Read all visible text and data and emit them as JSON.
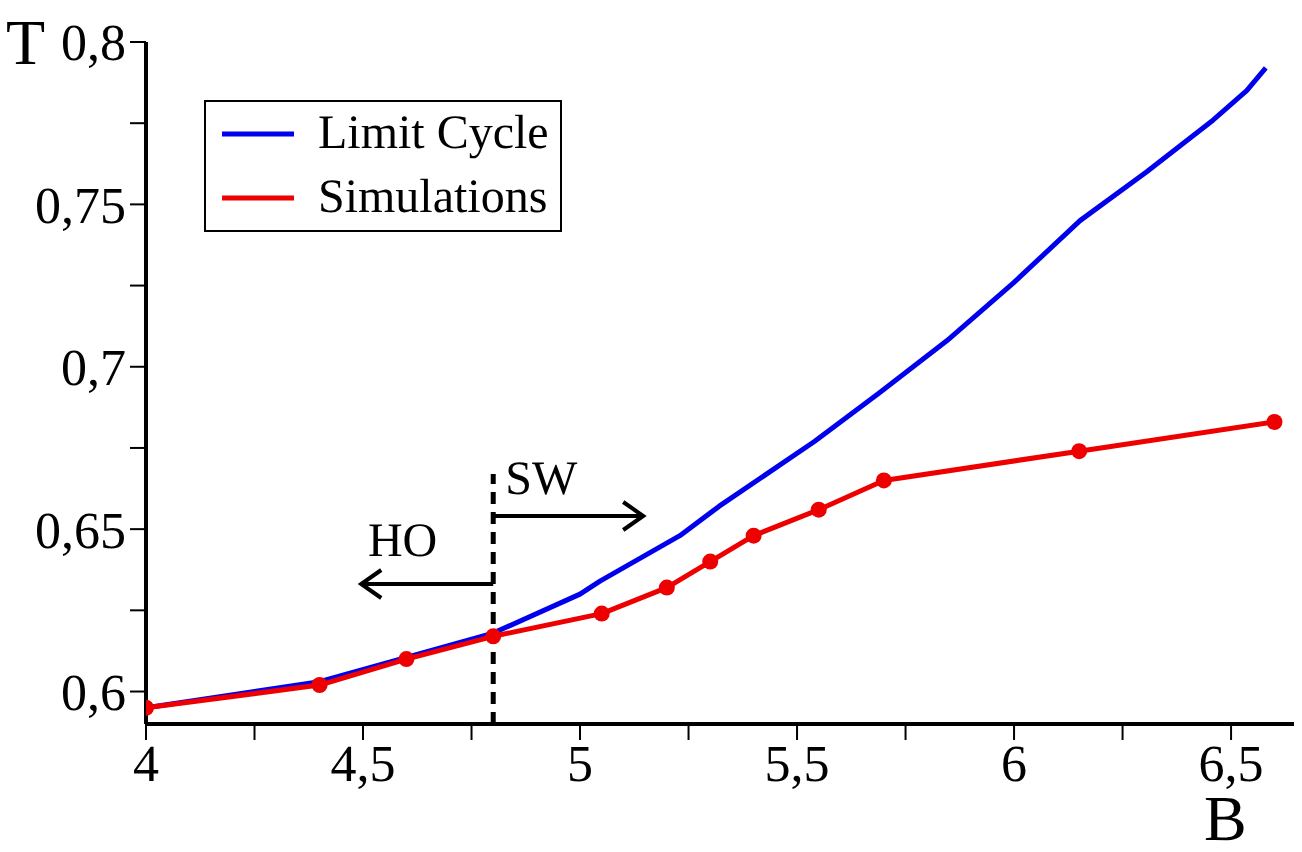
{
  "chart_data": {
    "type": "line",
    "xlabel": "B",
    "ylabel": "T",
    "xlim": [
      4,
      6.645
    ],
    "ylim": [
      0.59,
      0.8
    ],
    "xticks": [
      {
        "value": 4,
        "label": "4"
      },
      {
        "value": 4.25,
        "label": null
      },
      {
        "value": 4.5,
        "label": "4,5"
      },
      {
        "value": 4.75,
        "label": null
      },
      {
        "value": 5,
        "label": "5"
      },
      {
        "value": 5.25,
        "label": null
      },
      {
        "value": 5.5,
        "label": "5,5"
      },
      {
        "value": 5.75,
        "label": null
      },
      {
        "value": 6,
        "label": "6"
      },
      {
        "value": 6.25,
        "label": null
      },
      {
        "value": 6.5,
        "label": "6,5"
      }
    ],
    "yticks": [
      {
        "value": 0.6,
        "label": "0,6"
      },
      {
        "value": 0.625,
        "label": null
      },
      {
        "value": 0.65,
        "label": "0,65"
      },
      {
        "value": 0.675,
        "label": null
      },
      {
        "value": 0.7,
        "label": "0,7"
      },
      {
        "value": 0.725,
        "label": null
      },
      {
        "value": 0.75,
        "label": "0,75"
      },
      {
        "value": 0.775,
        "label": null
      },
      {
        "value": 0.8,
        "label": "0,8"
      }
    ],
    "legend": "top left",
    "grid": false,
    "series": [
      {
        "name": "Limit Cycle",
        "color": "#0000ee",
        "marker": "none",
        "x": [
          4.0,
          4.4,
          4.8,
          5.0,
          5.046,
          5.23,
          5.32,
          5.54,
          5.69,
          5.845,
          6.0,
          6.152,
          6.305,
          6.459,
          6.536,
          6.58
        ],
        "values": [
          0.595,
          0.603,
          0.618,
          0.63,
          0.634,
          0.648,
          0.657,
          0.677,
          0.692,
          0.708,
          0.726,
          0.745,
          0.76,
          0.776,
          0.785,
          0.792
        ]
      },
      {
        "name": "Simulations",
        "color": "#ee0000",
        "marker": "circle",
        "x": [
          4.0,
          4.4,
          4.6,
          4.8,
          5.05,
          5.2,
          5.3,
          5.4,
          5.55,
          5.7,
          6.15,
          6.6
        ],
        "values": [
          0.595,
          0.602,
          0.61,
          0.617,
          0.624,
          0.632,
          0.64,
          0.648,
          0.656,
          0.665,
          0.674,
          0.683
        ]
      },
      {
        "color": "#000000",
        "marker": "none",
        "line_style": "dashed",
        "x": [
          4.8,
          4.8
        ],
        "values": [
          0.59,
          0.667
        ]
      }
    ],
    "annotations": [
      "HO",
      "SW"
    ]
  }
}
